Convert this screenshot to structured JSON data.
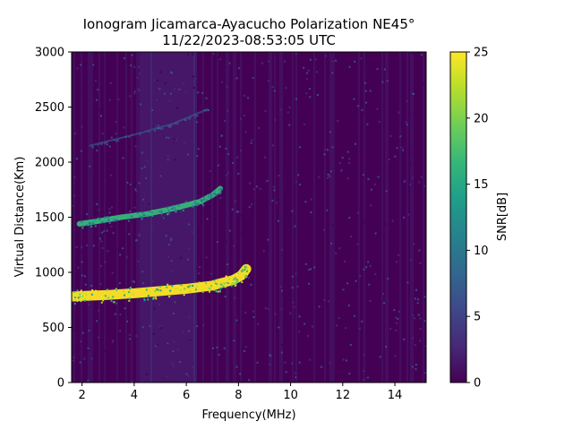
{
  "figure": {
    "title_line1": "Ionogram Jicamarca-Ayacucho Polarization NE45°",
    "title_line2": "11/22/2023-08:53:05 UTC"
  },
  "chart_data": {
    "type": "heatmap",
    "title": "Ionogram Jicamarca-Ayacucho Polarization NE45°",
    "subtitle": "11/22/2023-08:53:05 UTC",
    "xlabel": "Frequency(MHz)",
    "ylabel": "Virtual Distance(Km)",
    "xlim": [
      1.6,
      15.2
    ],
    "ylim": [
      0,
      3000
    ],
    "xticks": [
      2,
      4,
      6,
      8,
      10,
      12,
      14
    ],
    "yticks": [
      0,
      500,
      1000,
      1500,
      2000,
      2500,
      3000
    ],
    "colorbar": {
      "label": "SNR[dB]",
      "range": [
        0,
        25
      ],
      "ticks": [
        0,
        5,
        10,
        15,
        20,
        25
      ],
      "colormap": [
        "#440154",
        "#482878",
        "#3e4989",
        "#31688e",
        "#26828e",
        "#1f9e89",
        "#35b779",
        "#6ece58",
        "#b5de2b",
        "#fde725"
      ]
    },
    "traces": [
      {
        "label": "first hop echo trace",
        "snr_db": 25,
        "freq_mhz": [
          1.6,
          2.0,
          3.0,
          4.0,
          5.0,
          6.0,
          7.0,
          7.3,
          7.8,
          8.1,
          8.3
        ],
        "distance_km": [
          780,
          785,
          795,
          810,
          830,
          850,
          880,
          900,
          930,
          970,
          1030
        ]
      },
      {
        "label": "second hop echo trace",
        "snr_db": 16,
        "freq_mhz": [
          1.9,
          2.5,
          3.5,
          4.5,
          5.5,
          6.5,
          7.0,
          7.3
        ],
        "distance_km": [
          1440,
          1460,
          1500,
          1530,
          1580,
          1640,
          1700,
          1760
        ]
      },
      {
        "label": "third hop echo trace",
        "snr_db": 8,
        "freq_mhz": [
          2.3,
          4.0,
          5.5,
          6.8
        ],
        "distance_km": [
          2150,
          2250,
          2350,
          2480
        ]
      }
    ],
    "background_noise_snr_db": [
      0,
      4
    ],
    "enhanced_noise_band_mhz": [
      4.2,
      6.4
    ]
  }
}
